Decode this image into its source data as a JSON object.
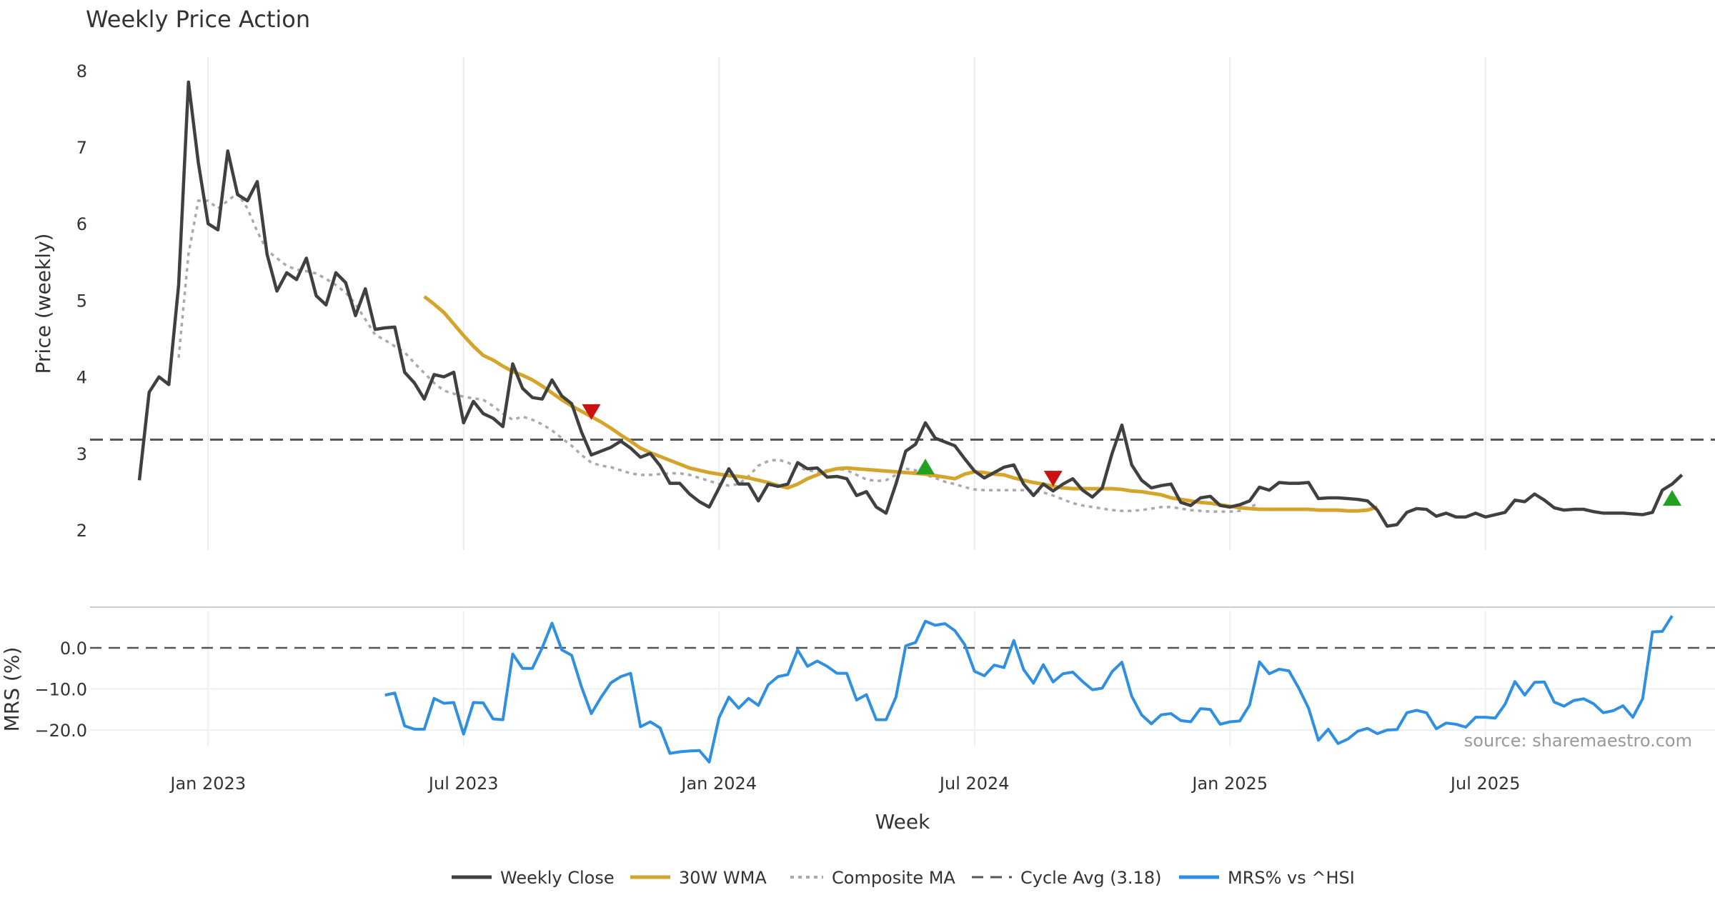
{
  "chart_data": {
    "type": "line",
    "title": "Weekly Price Action",
    "source": "source: sharemaestro.com",
    "xlabel": "Week",
    "x_ticks": [
      "Jan 2023",
      "Jul 2023",
      "Jan 2024",
      "Jul 2024",
      "Jan 2025",
      "Jul 2025"
    ],
    "x_tick_weeks": [
      7,
      33,
      59,
      85,
      111,
      137
    ],
    "price_panel": {
      "ylabel": "Price (weekly)",
      "ylim": [
        1.8,
        8.2
      ],
      "yticks": [
        2,
        3,
        4,
        5,
        6,
        7,
        8
      ],
      "cycle_avg": 3.18
    },
    "mrs_panel": {
      "ylabel": "MRS (%)",
      "ylim": [
        -28,
        8
      ],
      "yticks": [
        0,
        -10,
        -20
      ],
      "ytick_labels": [
        "0.0",
        "−10.0",
        "−20.0"
      ],
      "zero_line": 0
    },
    "legend": {
      "close": "Weekly Close",
      "wma": "30W WMA",
      "composite": "Composite MA",
      "cycle": "Cycle Avg (3.18)",
      "mrs": "MRS% vs ^HSI"
    },
    "colors": {
      "close": "#404040",
      "wma": "#d4a52a",
      "composite": "#aaaaaa",
      "cycle": "#555555",
      "mrs": "#2f8fe0",
      "buy": "#22a022",
      "sell": "#cc1111"
    },
    "series": [
      {
        "name": "Weekly Close",
        "start_week": 0,
        "values": [
          2.65,
          3.8,
          4.0,
          3.9,
          5.2,
          7.85,
          6.8,
          6.0,
          5.92,
          6.95,
          6.38,
          6.3,
          6.55,
          5.6,
          5.12,
          5.36,
          5.27,
          5.55,
          5.06,
          4.94,
          5.36,
          5.23,
          4.8,
          5.15,
          4.62,
          4.64,
          4.65,
          4.06,
          3.92,
          3.71,
          4.03,
          4.0,
          4.06,
          3.4,
          3.68,
          3.52,
          3.46,
          3.35,
          4.17,
          3.85,
          3.73,
          3.71,
          3.96,
          3.75,
          3.65,
          3.28,
          2.98,
          3.03,
          3.08,
          3.16,
          3.07,
          2.95,
          3.0,
          2.84,
          2.61,
          2.61,
          2.47,
          2.37,
          2.3,
          2.55,
          2.8,
          2.6,
          2.6,
          2.38,
          2.6,
          2.57,
          2.6,
          2.88,
          2.8,
          2.81,
          2.69,
          2.7,
          2.67,
          2.45,
          2.5,
          2.3,
          2.22,
          2.6,
          3.03,
          3.12,
          3.4,
          3.2,
          3.15,
          3.1,
          2.93,
          2.77,
          2.68,
          2.75,
          2.82,
          2.85,
          2.6,
          2.45,
          2.6,
          2.51,
          2.6,
          2.67,
          2.52,
          2.43,
          2.55,
          3.0,
          3.37,
          2.85,
          2.65,
          2.55,
          2.58,
          2.6,
          2.36,
          2.32,
          2.42,
          2.44,
          2.32,
          2.3,
          2.33,
          2.38,
          2.56,
          2.52,
          2.62,
          2.61,
          2.61,
          2.62,
          2.41,
          2.42,
          2.42,
          2.41,
          2.4,
          2.38,
          2.26,
          2.05,
          2.07,
          2.23,
          2.28,
          2.27,
          2.18,
          2.22,
          2.17,
          2.17,
          2.22,
          2.17,
          2.2,
          2.23,
          2.39,
          2.37,
          2.47,
          2.39,
          2.29,
          2.26,
          2.27,
          2.27,
          2.24,
          2.22,
          2.22,
          2.22,
          2.21,
          2.2,
          2.23,
          2.52,
          2.6,
          2.72
        ]
      },
      {
        "name": "30W WMA",
        "start_week": 29,
        "values": [
          5.05,
          4.95,
          4.84,
          4.69,
          4.54,
          4.4,
          4.28,
          4.22,
          4.14,
          4.07,
          4.02,
          3.96,
          3.88,
          3.79,
          3.7,
          3.62,
          3.55,
          3.48,
          3.41,
          3.33,
          3.24,
          3.16,
          3.07,
          3.01,
          2.96,
          2.91,
          2.86,
          2.81,
          2.78,
          2.75,
          2.73,
          2.71,
          2.7,
          2.68,
          2.65,
          2.62,
          2.58,
          2.55,
          2.6,
          2.67,
          2.72,
          2.77,
          2.8,
          2.81,
          2.8,
          2.79,
          2.78,
          2.77,
          2.76,
          2.75,
          2.74,
          2.73,
          2.71,
          2.69,
          2.67,
          2.73,
          2.76,
          2.75,
          2.73,
          2.72,
          2.68,
          2.65,
          2.62,
          2.6,
          2.57,
          2.55,
          2.54,
          2.54,
          2.54,
          2.54,
          2.54,
          2.53,
          2.51,
          2.5,
          2.48,
          2.46,
          2.42,
          2.4,
          2.38,
          2.36,
          2.35,
          2.33,
          2.31,
          2.29,
          2.28,
          2.27,
          2.27,
          2.27,
          2.27,
          2.27,
          2.27,
          2.26,
          2.26,
          2.26,
          2.25,
          2.25,
          2.26,
          2.3
        ]
      },
      {
        "name": "Composite MA",
        "start_week": 4,
        "values": [
          4.25,
          5.6,
          6.3,
          6.3,
          6.2,
          6.3,
          6.4,
          6.2,
          5.9,
          5.65,
          5.55,
          5.45,
          5.4,
          5.38,
          5.35,
          5.28,
          5.2,
          5.1,
          4.95,
          4.75,
          4.55,
          4.48,
          4.4,
          4.32,
          4.18,
          4.05,
          3.92,
          3.82,
          3.78,
          3.74,
          3.72,
          3.7,
          3.62,
          3.52,
          3.44,
          3.48,
          3.44,
          3.38,
          3.3,
          3.2,
          3.1,
          2.98,
          2.88,
          2.84,
          2.82,
          2.78,
          2.74,
          2.72,
          2.72,
          2.73,
          2.74,
          2.74,
          2.72,
          2.68,
          2.64,
          2.6,
          2.58,
          2.6,
          2.7,
          2.84,
          2.9,
          2.92,
          2.88,
          2.82,
          2.78,
          2.76,
          2.78,
          2.8,
          2.78,
          2.72,
          2.66,
          2.64,
          2.65,
          2.72,
          2.8,
          2.78,
          2.72,
          2.68,
          2.63,
          2.6,
          2.56,
          2.53,
          2.52,
          2.52,
          2.52,
          2.52,
          2.52,
          2.51,
          2.49,
          2.45,
          2.4,
          2.35,
          2.32,
          2.3,
          2.28,
          2.26,
          2.25,
          2.25,
          2.26,
          2.28,
          2.3,
          2.3,
          2.28,
          2.26,
          2.25,
          2.24,
          2.24,
          2.24,
          2.25,
          2.3,
          2.35
        ]
      }
    ],
    "mrs_series": {
      "name": "MRS% vs ^HSI",
      "start_week": 25,
      "values": [
        -11.5,
        -11,
        -19,
        -19.8,
        -19.8,
        -12.3,
        -13.5,
        -13.3,
        -21,
        -13.3,
        -13.4,
        -17.3,
        -17.5,
        -1.5,
        -5,
        -5,
        0,
        6,
        -0.5,
        -1.8,
        -9.5,
        -16,
        -12,
        -8.5,
        -7,
        -6.2,
        -19.2,
        -18,
        -19.5,
        -25.7,
        -25.3,
        -25.1,
        -25,
        -27.8,
        -17,
        -12,
        -14.7,
        -12.3,
        -14,
        -9,
        -7,
        -6.5,
        -0.5,
        -4.5,
        -3.2,
        -4.5,
        -6.2,
        -6.2,
        -12.7,
        -11.4,
        -17.5,
        -17.5,
        -12,
        0.5,
        1.3,
        6.5,
        5.5,
        5.9,
        4.2,
        0.8,
        -5.7,
        -6.8,
        -4.2,
        -4.8,
        1.8,
        -5.3,
        -8.6,
        -4.1,
        -8.3,
        -6.3,
        -5.9,
        -8.2,
        -10.2,
        -9.8,
        -5.8,
        -3.5,
        -11.8,
        -16.3,
        -18.5,
        -16.3,
        -16,
        -17.7,
        -18,
        -14.8,
        -15,
        -18.6,
        -18,
        -17.8,
        -13.9,
        -3.4,
        -6.3,
        -5.2,
        -5.6,
        -9.8,
        -14.7,
        -22.5,
        -19.8,
        -23.3,
        -22.2,
        -20.3,
        -19.6,
        -20.9,
        -20,
        -19.9,
        -15.8,
        -15.2,
        -15.8,
        -19.7,
        -18.3,
        -18.6,
        -19.3,
        -16.9,
        -16.9,
        -17.1,
        -13.7,
        -8.2,
        -11.5,
        -8.4,
        -8.3,
        -13.2,
        -14.2,
        -12.8,
        -12.4,
        -13.6,
        -15.8,
        -15.3,
        -14.1,
        -16.9,
        -12.4,
        3.9,
        4,
        7.8
      ]
    },
    "signals": [
      {
        "type": "sell",
        "week": 46,
        "price": 3.55
      },
      {
        "type": "buy",
        "week": 80,
        "price": 2.82
      },
      {
        "type": "sell",
        "week": 93,
        "price": 2.68
      },
      {
        "type": "buy",
        "week": 156,
        "price": 2.41
      }
    ]
  }
}
